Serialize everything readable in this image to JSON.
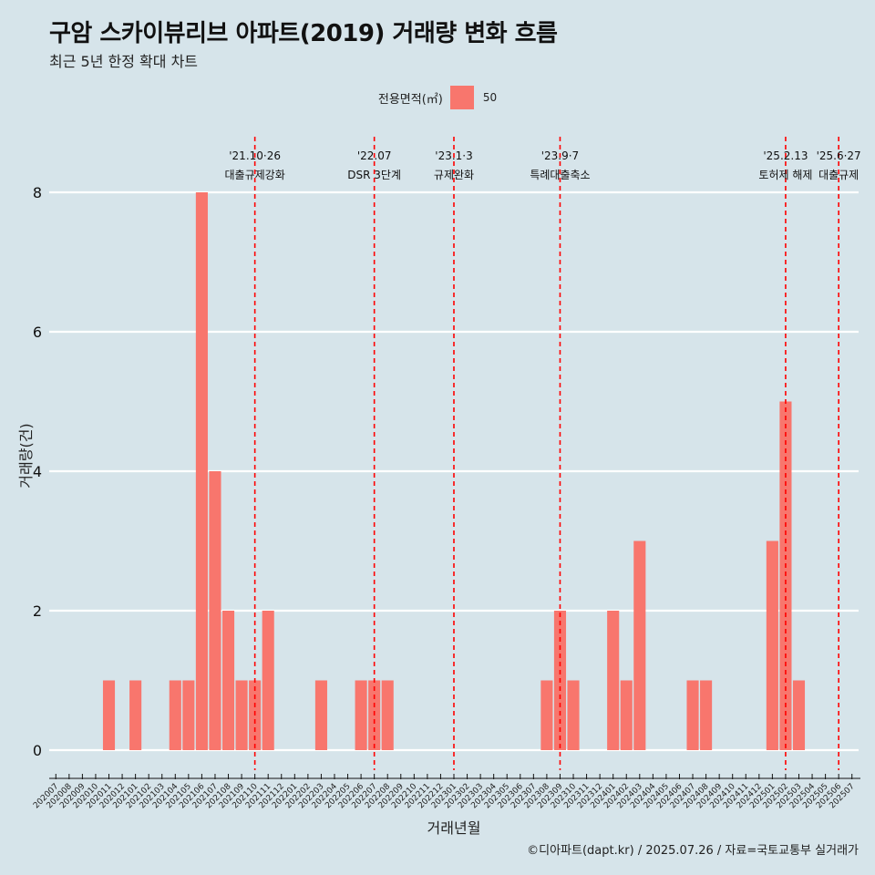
{
  "title": "구암 스카이뷰리브 아파트(2019) 거래량 변화 흐름",
  "subtitle": "최근 5년 한정 확대 차트",
  "caption": "©디아파트(dapt.kr) / 2025.07.26 / 자료=국토교통부 실거래가",
  "legend": {
    "title": "전용면적(㎡)",
    "label": "50",
    "color": "#f8766d"
  },
  "chart_data": {
    "type": "bar",
    "title": "구암 스카이뷰리브 아파트(2019) 거래량 변화 흐름",
    "xlabel": "거래년월",
    "ylabel": "거래량(건)",
    "ylim": [
      0,
      8
    ],
    "yticks": [
      0,
      2,
      4,
      6,
      8
    ],
    "grid": "horizontal",
    "legend_position": "top",
    "categories": [
      "202007",
      "202008",
      "202009",
      "202010",
      "202011",
      "202012",
      "202101",
      "202102",
      "202103",
      "202104",
      "202105",
      "202106",
      "202107",
      "202108",
      "202109",
      "202110",
      "202111",
      "202112",
      "202201",
      "202202",
      "202203",
      "202204",
      "202205",
      "202206",
      "202207",
      "202208",
      "202209",
      "202210",
      "202211",
      "202212",
      "202301",
      "202302",
      "202303",
      "202304",
      "202305",
      "202306",
      "202307",
      "202308",
      "202309",
      "202310",
      "202311",
      "202312",
      "202401",
      "202402",
      "202403",
      "202404",
      "202405",
      "202406",
      "202407",
      "202408",
      "202409",
      "202410",
      "202411",
      "202412",
      "202501",
      "202502",
      "202503",
      "202504",
      "202505",
      "202506",
      "202507"
    ],
    "series": [
      {
        "name": "50",
        "values": [
          0,
          0,
          0,
          0,
          1,
          0,
          1,
          0,
          0,
          1,
          1,
          8,
          4,
          2,
          1,
          1,
          2,
          0,
          0,
          0,
          1,
          0,
          0,
          1,
          1,
          1,
          0,
          0,
          0,
          0,
          0,
          0,
          0,
          0,
          0,
          0,
          0,
          1,
          2,
          1,
          0,
          0,
          2,
          1,
          3,
          0,
          0,
          0,
          1,
          1,
          0,
          0,
          0,
          0,
          3,
          5,
          1,
          0,
          0,
          0,
          0
        ]
      }
    ],
    "annotations": [
      {
        "x": "202110",
        "date": "'21.10·26",
        "text": "대출규제강화"
      },
      {
        "x": "202207",
        "date": "'22.07",
        "text": "DSR 3단계"
      },
      {
        "x": "202301",
        "date": "'23.1·3",
        "text": "규제완화"
      },
      {
        "x": "202309",
        "date": "'23.9·7",
        "text": "특례대출축소"
      },
      {
        "x": "202502",
        "date": "'25.2.13",
        "text": "토허제 해제"
      },
      {
        "x": "202506",
        "date": "'25.6·27",
        "text": "대출규제"
      }
    ],
    "annotation_color": "#ff0000",
    "bar_color": "#f8766d"
  }
}
